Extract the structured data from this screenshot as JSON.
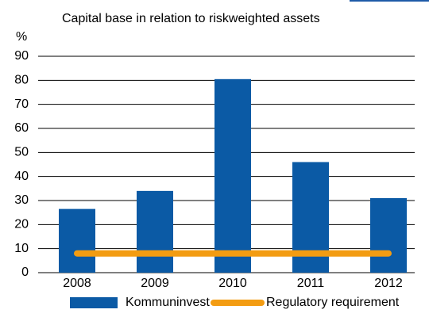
{
  "chart_data": {
    "type": "bar",
    "title": "Capital base in relation to riskweighted assets",
    "y_label": "%",
    "categories": [
      "2008",
      "2009",
      "2010",
      "2011",
      "2012"
    ],
    "series": [
      {
        "name": "Kommuninvest",
        "type": "bar",
        "color": "#0b5aa5",
        "values": [
          26.5,
          34,
          80.5,
          46,
          31
        ]
      },
      {
        "name": "Regulatory requirement",
        "type": "line",
        "color": "#f39c12",
        "values": [
          8,
          8,
          8,
          8,
          8
        ]
      }
    ],
    "ylim": [
      0,
      90
    ],
    "yticks": [
      0,
      10,
      20,
      30,
      40,
      50,
      60,
      70,
      80,
      90
    ],
    "grid": true
  }
}
